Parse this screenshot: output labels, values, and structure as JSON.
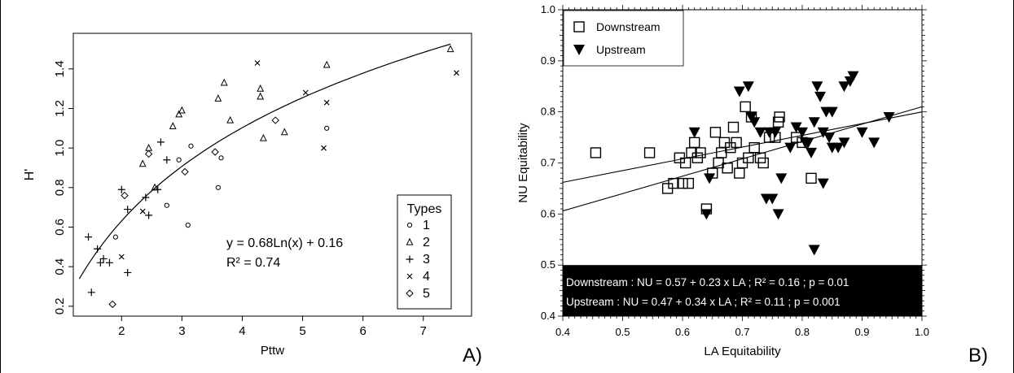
{
  "panel_letters": [
    "A)",
    "B)"
  ],
  "chart_data": [
    {
      "type": "scatter",
      "panel": "A)",
      "xlabel": "Pttw",
      "ylabel": "H'",
      "xlim": [
        1.2,
        7.8
      ],
      "ylim": [
        0.15,
        1.58
      ],
      "xticks": [
        2,
        3,
        4,
        5,
        6,
        7
      ],
      "yticks": [
        0.2,
        0.4,
        0.6,
        0.8,
        1.0,
        1.2,
        1.4
      ],
      "yticklabels": [
        "0.2",
        "0.4",
        "0.6",
        "0.8",
        "1.0",
        "1.2",
        "1.4"
      ],
      "grid": false,
      "legend": {
        "title": "Types",
        "position": "bottom-right"
      },
      "annotation": [
        "y = 0.68Ln(x) + 0.16",
        "R² = 0.74"
      ],
      "trendline": {
        "type": "log",
        "a": 0.68,
        "b": 0.16,
        "x_range": [
          1.3,
          7.45
        ]
      },
      "series": [
        {
          "name": "1",
          "marker": "circle",
          "points": [
            [
              1.9,
              0.55
            ],
            [
              2.75,
              0.71
            ],
            [
              3.1,
              0.61
            ],
            [
              2.95,
              0.94
            ],
            [
              3.15,
              1.01
            ],
            [
              3.6,
              0.8
            ],
            [
              3.65,
              0.95
            ],
            [
              5.4,
              1.1
            ]
          ]
        },
        {
          "name": "2",
          "marker": "triangle",
          "points": [
            [
              2.35,
              0.92
            ],
            [
              2.45,
              1.0
            ],
            [
              2.55,
              0.8
            ],
            [
              2.85,
              1.11
            ],
            [
              2.95,
              1.17
            ],
            [
              3.0,
              1.19
            ],
            [
              3.6,
              1.25
            ],
            [
              3.7,
              1.33
            ],
            [
              3.8,
              1.14
            ],
            [
              4.3,
              1.3
            ],
            [
              4.3,
              1.26
            ],
            [
              4.35,
              1.05
            ],
            [
              4.7,
              1.08
            ],
            [
              5.4,
              1.42
            ],
            [
              7.45,
              1.5
            ]
          ]
        },
        {
          "name": "3",
          "marker": "plus",
          "points": [
            [
              1.45,
              0.55
            ],
            [
              1.5,
              0.27
            ],
            [
              1.6,
              0.49
            ],
            [
              1.65,
              0.42
            ],
            [
              1.7,
              0.44
            ],
            [
              1.8,
              0.42
            ],
            [
              2.0,
              0.79
            ],
            [
              2.1,
              0.69
            ],
            [
              2.1,
              0.37
            ],
            [
              2.4,
              0.75
            ],
            [
              2.45,
              0.66
            ],
            [
              2.6,
              0.79
            ],
            [
              2.65,
              1.03
            ],
            [
              2.75,
              0.94
            ]
          ]
        },
        {
          "name": "4",
          "marker": "x",
          "points": [
            [
              2.0,
              0.45
            ],
            [
              2.35,
              0.68
            ],
            [
              4.25,
              1.43
            ],
            [
              5.05,
              1.28
            ],
            [
              5.35,
              1.0
            ],
            [
              5.4,
              1.23
            ],
            [
              7.55,
              1.38
            ]
          ]
        },
        {
          "name": "5",
          "marker": "diamond",
          "points": [
            [
              1.85,
              0.21
            ],
            [
              2.05,
              0.76
            ],
            [
              2.45,
              0.97
            ],
            [
              3.05,
              0.88
            ],
            [
              3.55,
              0.98
            ],
            [
              4.55,
              1.14
            ]
          ]
        }
      ]
    },
    {
      "type": "scatter",
      "panel": "B)",
      "xlabel": "LA Equitability",
      "ylabel": "NU Equitability",
      "xlim": [
        0.4,
        1.0
      ],
      "ylim": [
        0.4,
        1.0
      ],
      "xticks": [
        0.4,
        0.5,
        0.6,
        0.7,
        0.8,
        0.9,
        1.0
      ],
      "yticks": [
        0.4,
        0.5,
        0.6,
        0.7,
        0.8,
        0.9,
        1.0
      ],
      "ticklabels": [
        "0.4",
        "0.5",
        "0.6",
        "0.7",
        "0.8",
        "0.9",
        "1.0"
      ],
      "grid": false,
      "legend": {
        "position": "top-left"
      },
      "equations": [
        "Downstream : NU = 0.57 + 0.23 x LA ; R² = 0.16 ; p = 0.01",
        "Upstream : NU = 0.47 + 0.34 x LA ; R² = 0.11 ; p = 0.001"
      ],
      "regression_lines": [
        {
          "intercept": 0.57,
          "slope": 0.23
        },
        {
          "intercept": 0.47,
          "slope": 0.34
        }
      ],
      "series": [
        {
          "name": "Downstream",
          "marker": "open-square",
          "points": [
            [
              0.455,
              0.72
            ],
            [
              0.545,
              0.72
            ],
            [
              0.575,
              0.65
            ],
            [
              0.585,
              0.66
            ],
            [
              0.595,
              0.71
            ],
            [
              0.6,
              0.66
            ],
            [
              0.605,
              0.7
            ],
            [
              0.61,
              0.66
            ],
            [
              0.615,
              0.72
            ],
            [
              0.62,
              0.74
            ],
            [
              0.625,
              0.71
            ],
            [
              0.63,
              0.72
            ],
            [
              0.64,
              0.61
            ],
            [
              0.65,
              0.68
            ],
            [
              0.655,
              0.76
            ],
            [
              0.66,
              0.7
            ],
            [
              0.665,
              0.72
            ],
            [
              0.67,
              0.74
            ],
            [
              0.675,
              0.69
            ],
            [
              0.68,
              0.73
            ],
            [
              0.685,
              0.77
            ],
            [
              0.69,
              0.74
            ],
            [
              0.695,
              0.68
            ],
            [
              0.7,
              0.7
            ],
            [
              0.705,
              0.81
            ],
            [
              0.71,
              0.71
            ],
            [
              0.715,
              0.79
            ],
            [
              0.72,
              0.73
            ],
            [
              0.73,
              0.71
            ],
            [
              0.735,
              0.7
            ],
            [
              0.745,
              0.75
            ],
            [
              0.755,
              0.75
            ],
            [
              0.76,
              0.78
            ],
            [
              0.762,
              0.79
            ],
            [
              0.79,
              0.75
            ],
            [
              0.8,
              0.74
            ],
            [
              0.815,
              0.67
            ]
          ]
        },
        {
          "name": "Upstream",
          "marker": "filled-triangle-down",
          "points": [
            [
              0.64,
              0.6
            ],
            [
              0.645,
              0.67
            ],
            [
              0.62,
              0.76
            ],
            [
              0.695,
              0.84
            ],
            [
              0.71,
              0.85
            ],
            [
              0.715,
              0.79
            ],
            [
              0.72,
              0.78
            ],
            [
              0.73,
              0.76
            ],
            [
              0.74,
              0.63
            ],
            [
              0.745,
              0.76
            ],
            [
              0.75,
              0.63
            ],
            [
              0.755,
              0.76
            ],
            [
              0.76,
              0.6
            ],
            [
              0.765,
              0.67
            ],
            [
              0.78,
              0.73
            ],
            [
              0.79,
              0.77
            ],
            [
              0.8,
              0.76
            ],
            [
              0.805,
              0.74
            ],
            [
              0.81,
              0.74
            ],
            [
              0.815,
              0.72
            ],
            [
              0.82,
              0.78
            ],
            [
              0.82,
              0.53
            ],
            [
              0.825,
              0.85
            ],
            [
              0.83,
              0.83
            ],
            [
              0.835,
              0.66
            ],
            [
              0.835,
              0.76
            ],
            [
              0.84,
              0.8
            ],
            [
              0.845,
              0.75
            ],
            [
              0.85,
              0.73
            ],
            [
              0.86,
              0.73
            ],
            [
              0.87,
              0.85
            ],
            [
              0.88,
              0.86
            ],
            [
              0.885,
              0.87
            ],
            [
              0.9,
              0.76
            ],
            [
              0.92,
              0.74
            ],
            [
              0.945,
              0.79
            ],
            [
              0.85,
              0.8
            ],
            [
              0.87,
              0.74
            ]
          ]
        }
      ]
    }
  ]
}
